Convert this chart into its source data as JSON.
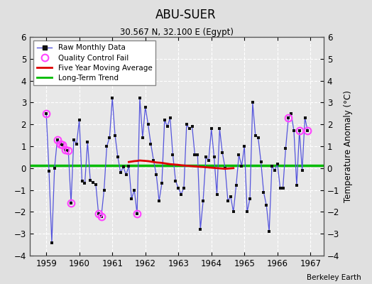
{
  "title": "ABU-SUER",
  "subtitle": "30.567 N, 32.100 E (Egypt)",
  "ylabel": "Temperature Anomaly (°C)",
  "credit": "Berkeley Earth",
  "ylim": [
    -4,
    6
  ],
  "yticks": [
    -4,
    -3,
    -2,
    -1,
    0,
    1,
    2,
    3,
    4,
    5,
    6
  ],
  "xlim": [
    1958.5,
    1967.4
  ],
  "xticks": [
    1959,
    1960,
    1961,
    1962,
    1963,
    1964,
    1965,
    1966,
    1967
  ],
  "long_term_trend": 0.13,
  "bg_color": "#e0e0e0",
  "plot_bg": "#e8e8e8",
  "grid_color": "#c8c8c8",
  "raw_line_color": "#5555dd",
  "raw_marker_color": "#111111",
  "qc_color": "#ff44ff",
  "moving_avg_color": "#dd0000",
  "trend_color": "#00bb00",
  "monthly_data": [
    [
      1959.0,
      2.5
    ],
    [
      1959.083,
      -0.15
    ],
    [
      1959.167,
      -3.4
    ],
    [
      1959.25,
      0.0
    ],
    [
      1959.333,
      1.3
    ],
    [
      1959.417,
      1.1
    ],
    [
      1959.5,
      1.05
    ],
    [
      1959.583,
      0.85
    ],
    [
      1959.667,
      0.8
    ],
    [
      1959.75,
      -1.6
    ],
    [
      1959.833,
      1.3
    ],
    [
      1959.917,
      1.1
    ],
    [
      1960.0,
      2.2
    ],
    [
      1960.083,
      -0.6
    ],
    [
      1960.167,
      -0.7
    ],
    [
      1960.25,
      1.2
    ],
    [
      1960.333,
      -0.55
    ],
    [
      1960.417,
      -0.65
    ],
    [
      1960.5,
      -0.75
    ],
    [
      1960.583,
      -2.1
    ],
    [
      1960.667,
      -2.2
    ],
    [
      1960.75,
      -1.0
    ],
    [
      1960.833,
      1.0
    ],
    [
      1960.917,
      1.4
    ],
    [
      1961.0,
      3.2
    ],
    [
      1961.083,
      1.5
    ],
    [
      1961.167,
      0.5
    ],
    [
      1961.25,
      -0.2
    ],
    [
      1961.333,
      0.05
    ],
    [
      1961.417,
      -0.3
    ],
    [
      1961.5,
      0.1
    ],
    [
      1961.583,
      -1.4
    ],
    [
      1961.667,
      -1.0
    ],
    [
      1961.75,
      -2.1
    ],
    [
      1961.833,
      3.2
    ],
    [
      1961.917,
      1.4
    ],
    [
      1962.0,
      2.8
    ],
    [
      1962.083,
      2.0
    ],
    [
      1962.167,
      1.1
    ],
    [
      1962.25,
      0.35
    ],
    [
      1962.333,
      -0.3
    ],
    [
      1962.417,
      -1.5
    ],
    [
      1962.5,
      -0.7
    ],
    [
      1962.583,
      2.2
    ],
    [
      1962.667,
      1.9
    ],
    [
      1962.75,
      2.3
    ],
    [
      1962.833,
      0.6
    ],
    [
      1962.917,
      -0.6
    ],
    [
      1963.0,
      -0.9
    ],
    [
      1963.083,
      -1.2
    ],
    [
      1963.167,
      -0.9
    ],
    [
      1963.25,
      2.0
    ],
    [
      1963.333,
      1.8
    ],
    [
      1963.417,
      1.9
    ],
    [
      1963.5,
      0.6
    ],
    [
      1963.583,
      0.6
    ],
    [
      1963.667,
      -2.8
    ],
    [
      1963.75,
      -1.5
    ],
    [
      1963.833,
      0.5
    ],
    [
      1963.917,
      0.35
    ],
    [
      1964.0,
      1.8
    ],
    [
      1964.083,
      0.5
    ],
    [
      1964.167,
      -1.2
    ],
    [
      1964.25,
      1.8
    ],
    [
      1964.333,
      0.7
    ],
    [
      1964.417,
      0.0
    ],
    [
      1964.5,
      -1.5
    ],
    [
      1964.583,
      -1.3
    ],
    [
      1964.667,
      -2.0
    ],
    [
      1964.75,
      -0.8
    ],
    [
      1964.833,
      0.6
    ],
    [
      1964.917,
      0.1
    ],
    [
      1965.0,
      1.0
    ],
    [
      1965.083,
      -2.0
    ],
    [
      1965.167,
      -1.4
    ],
    [
      1965.25,
      3.0
    ],
    [
      1965.333,
      1.5
    ],
    [
      1965.417,
      1.4
    ],
    [
      1965.5,
      0.3
    ],
    [
      1965.583,
      -1.1
    ],
    [
      1965.667,
      -1.7
    ],
    [
      1965.75,
      -2.9
    ],
    [
      1965.833,
      0.1
    ],
    [
      1965.917,
      -0.1
    ],
    [
      1966.0,
      0.2
    ],
    [
      1966.083,
      -0.9
    ],
    [
      1966.167,
      -0.9
    ],
    [
      1966.25,
      0.9
    ],
    [
      1966.333,
      2.3
    ],
    [
      1966.417,
      2.5
    ],
    [
      1966.5,
      1.7
    ],
    [
      1966.583,
      -0.8
    ],
    [
      1966.667,
      1.7
    ],
    [
      1966.75,
      -0.1
    ],
    [
      1966.833,
      2.3
    ],
    [
      1966.917,
      1.7
    ]
  ],
  "qc_fail_points": [
    [
      1959.0,
      2.5
    ],
    [
      1959.333,
      1.3
    ],
    [
      1959.417,
      1.1
    ],
    [
      1959.5,
      1.05
    ],
    [
      1959.583,
      0.85
    ],
    [
      1959.667,
      0.8
    ],
    [
      1959.75,
      -1.6
    ],
    [
      1960.583,
      -2.1
    ],
    [
      1960.667,
      -2.2
    ],
    [
      1961.75,
      -2.1
    ],
    [
      1966.333,
      2.3
    ],
    [
      1966.667,
      1.7
    ],
    [
      1966.917,
      1.7
    ]
  ],
  "moving_avg": [
    [
      1961.5,
      0.28
    ],
    [
      1961.583,
      0.3
    ],
    [
      1961.667,
      0.32
    ],
    [
      1961.75,
      0.33
    ],
    [
      1961.833,
      0.35
    ],
    [
      1961.917,
      0.34
    ],
    [
      1962.0,
      0.33
    ],
    [
      1962.083,
      0.32
    ],
    [
      1962.167,
      0.3
    ],
    [
      1962.25,
      0.28
    ],
    [
      1962.333,
      0.26
    ],
    [
      1962.417,
      0.25
    ],
    [
      1962.5,
      0.24
    ],
    [
      1962.583,
      0.22
    ],
    [
      1962.667,
      0.2
    ],
    [
      1962.75,
      0.18
    ],
    [
      1962.833,
      0.17
    ],
    [
      1962.917,
      0.16
    ],
    [
      1963.0,
      0.15
    ],
    [
      1963.083,
      0.13
    ],
    [
      1963.167,
      0.12
    ],
    [
      1963.25,
      0.11
    ],
    [
      1963.333,
      0.1
    ],
    [
      1963.417,
      0.09
    ],
    [
      1963.5,
      0.08
    ],
    [
      1963.583,
      0.07
    ],
    [
      1963.667,
      0.06
    ],
    [
      1963.75,
      0.05
    ],
    [
      1963.833,
      0.04
    ],
    [
      1963.917,
      0.03
    ],
    [
      1964.0,
      0.02
    ],
    [
      1964.083,
      0.01
    ],
    [
      1964.167,
      0.0
    ],
    [
      1964.25,
      -0.01
    ],
    [
      1964.333,
      -0.02
    ],
    [
      1964.417,
      -0.03
    ],
    [
      1964.5,
      -0.02
    ],
    [
      1964.583,
      -0.01
    ],
    [
      1964.667,
      0.0
    ]
  ]
}
